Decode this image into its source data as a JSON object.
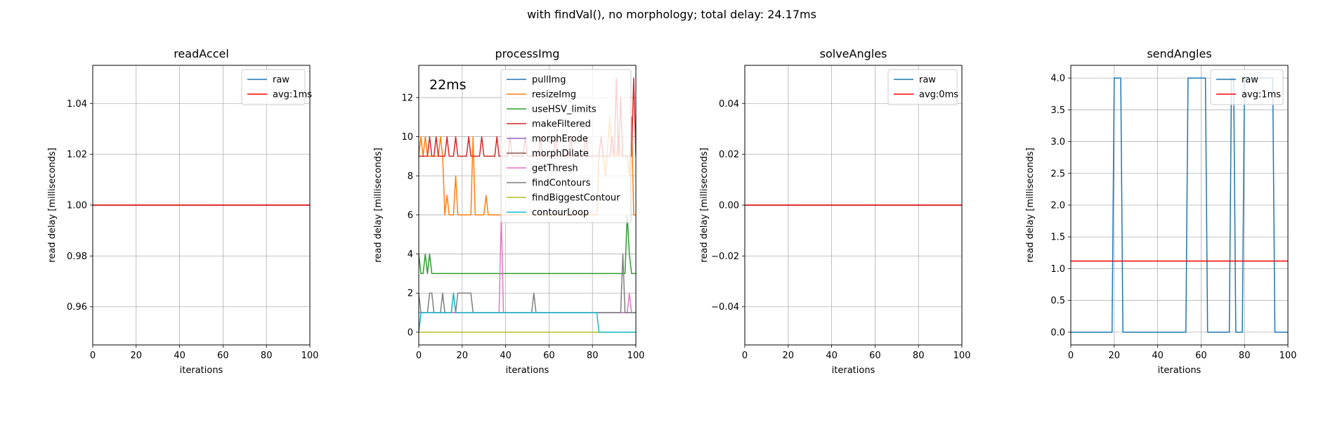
{
  "figure": {
    "suptitle": "with findVal(), no morphology; total delay: 24.17ms"
  },
  "colors": {
    "tab_blue": "#1f77b4",
    "tab_orange": "#ff7f0e",
    "tab_green": "#2ca02c",
    "tab_red": "#d62728",
    "tab_purple": "#9467bd",
    "tab_brown": "#8c564b",
    "tab_pink": "#e377c2",
    "tab_gray": "#7f7f7f",
    "tab_olive": "#bcbd22",
    "tab_cyan": "#17becf",
    "avg_red": "#ff0000",
    "grid": "#b0b0b0"
  },
  "chart_data": [
    {
      "type": "line",
      "title": "readAccel",
      "xlabel": "iterations",
      "ylabel": "read delay [milliseconds]",
      "xlim": [
        0,
        100
      ],
      "ylim": [
        0.945,
        1.055
      ],
      "xticks": [
        0,
        20,
        40,
        60,
        80,
        100
      ],
      "yticks": [
        0.96,
        0.98,
        1.0,
        1.02,
        1.04
      ],
      "ytick_labels": [
        "0.96",
        "0.98",
        "1.00",
        "1.02",
        "1.04"
      ],
      "grid": true,
      "legend": "upper right",
      "series": [
        {
          "name": "raw",
          "color": "#1f77b4",
          "segments": [
            [
              [
                0,
                1
              ],
              [
                100,
                1
              ]
            ]
          ]
        },
        {
          "name": "avg:1ms",
          "color": "#ff0000",
          "segments": [
            [
              [
                0,
                1
              ],
              [
                100,
                1
              ]
            ]
          ]
        }
      ]
    },
    {
      "type": "line",
      "title": "processImg",
      "xlabel": "iterations",
      "ylabel": "read delay [milliseconds]",
      "xlim": [
        0,
        100
      ],
      "ylim": [
        -0.65,
        13.65
      ],
      "xticks": [
        0,
        20,
        40,
        60,
        80,
        100
      ],
      "yticks": [
        0,
        2,
        4,
        6,
        8,
        10,
        12
      ],
      "ytick_labels": [
        "0",
        "2",
        "4",
        "6",
        "8",
        "10",
        "12"
      ],
      "grid": true,
      "legend": "upper right",
      "annotation": "22ms",
      "series": [
        {
          "name": "pullImg",
          "color": "#1f77b4",
          "segments": [
            [
              [
                0,
                0
              ],
              [
                1,
                1
              ],
              [
                100,
                1
              ]
            ]
          ]
        },
        {
          "name": "resizeImg",
          "color": "#ff7f0e",
          "segments": [
            [
              [
                0,
                9
              ],
              [
                1,
                10
              ],
              [
                2,
                9
              ],
              [
                3,
                10
              ],
              [
                4,
                9
              ],
              [
                9,
                9
              ],
              [
                10,
                10
              ],
              [
                11,
                9
              ],
              [
                12,
                6
              ],
              [
                13,
                7
              ],
              [
                14,
                6
              ],
              [
                16,
                6
              ],
              [
                17,
                8
              ],
              [
                18,
                6
              ],
              [
                24,
                6
              ],
              [
                25,
                10
              ],
              [
                26,
                6
              ],
              [
                30,
                6
              ],
              [
                31,
                7
              ],
              [
                32,
                6
              ],
              [
                82,
                6
              ],
              [
                83,
                9
              ],
              [
                85,
                9
              ],
              [
                86,
                8
              ],
              [
                88,
                11
              ],
              [
                89,
                9
              ],
              [
                91,
                9
              ],
              [
                92,
                10
              ],
              [
                93,
                9
              ],
              [
                96,
                9
              ],
              [
                97,
                8
              ],
              [
                98,
                11
              ],
              [
                99,
                6
              ],
              [
                100,
                6
              ]
            ]
          ]
        },
        {
          "name": "useHSV_limits",
          "color": "#2ca02c",
          "segments": [
            [
              [
                0,
                4
              ],
              [
                1,
                3
              ],
              [
                2,
                3
              ],
              [
                3,
                4
              ],
              [
                4,
                3
              ],
              [
                5,
                4
              ],
              [
                6,
                3
              ],
              [
                95,
                3
              ],
              [
                96,
                6
              ],
              [
                97,
                4
              ],
              [
                98,
                3
              ],
              [
                100,
                3
              ]
            ]
          ]
        },
        {
          "name": "makeFiltered",
          "color": "#d62728",
          "segments": [
            [
              [
                0,
                9
              ],
              [
                4,
                9
              ],
              [
                5,
                10
              ],
              [
                6,
                9
              ],
              [
                7,
                9
              ],
              [
                8,
                10
              ],
              [
                9,
                9
              ],
              [
                12,
                9
              ],
              [
                13,
                10
              ],
              [
                14,
                9
              ],
              [
                16,
                9
              ],
              [
                17,
                10
              ],
              [
                18,
                9
              ],
              [
                22,
                9
              ],
              [
                23,
                10
              ],
              [
                24,
                9
              ],
              [
                28,
                9
              ],
              [
                29,
                10
              ],
              [
                30,
                9
              ],
              [
                35,
                9
              ],
              [
                36,
                10
              ],
              [
                37,
                9
              ],
              [
                41,
                9
              ],
              [
                42,
                10
              ],
              [
                43,
                9
              ],
              [
                48,
                9
              ],
              [
                49,
                10
              ],
              [
                50,
                9
              ],
              [
                55,
                9
              ],
              [
                56,
                10
              ],
              [
                57,
                9
              ],
              [
                62,
                9
              ],
              [
                63,
                10
              ],
              [
                64,
                9
              ],
              [
                69,
                9
              ],
              [
                70,
                10
              ],
              [
                71,
                9
              ],
              [
                76,
                9
              ],
              [
                77,
                10
              ],
              [
                78,
                9
              ],
              [
                83,
                9
              ],
              [
                84,
                10
              ],
              [
                85,
                9
              ],
              [
                88,
                9
              ],
              [
                89,
                10
              ],
              [
                90,
                9
              ],
              [
                91,
                13
              ],
              [
                92,
                9
              ],
              [
                93,
                12
              ],
              [
                94,
                9
              ],
              [
                98,
                9
              ],
              [
                99,
                13
              ],
              [
                100,
                9
              ]
            ]
          ]
        },
        {
          "name": "morphErode",
          "color": "#9467bd",
          "segments": []
        },
        {
          "name": "morphDilate",
          "color": "#8c564b",
          "segments": []
        },
        {
          "name": "getThresh",
          "color": "#e377c2",
          "segments": [
            [
              [
                0,
                1
              ],
              [
                37,
                1
              ],
              [
                38,
                6
              ],
              [
                39,
                1
              ],
              [
                96,
                1
              ],
              [
                97,
                2
              ],
              [
                98,
                1
              ],
              [
                100,
                1
              ]
            ]
          ]
        },
        {
          "name": "findContours",
          "color": "#7f7f7f",
          "segments": [
            [
              [
                0,
                2
              ],
              [
                1,
                1
              ],
              [
                4,
                1
              ],
              [
                5,
                2
              ],
              [
                6,
                2
              ],
              [
                7,
                1
              ],
              [
                10,
                1
              ],
              [
                11,
                2
              ],
              [
                12,
                1
              ],
              [
                15,
                1
              ],
              [
                16,
                2
              ],
              [
                17,
                1
              ],
              [
                18,
                2
              ],
              [
                24,
                2
              ],
              [
                25,
                1
              ],
              [
                52,
                1
              ],
              [
                53,
                2
              ],
              [
                54,
                1
              ],
              [
                93,
                1
              ],
              [
                94,
                4
              ],
              [
                95,
                1
              ],
              [
                100,
                1
              ]
            ]
          ]
        },
        {
          "name": "findBiggestContour",
          "color": "#bcbd22",
          "segments": [
            [
              [
                0,
                0
              ],
              [
                100,
                0
              ]
            ]
          ]
        },
        {
          "name": "contourLoop",
          "color": "#17becf",
          "segments": [
            [
              [
                0,
                0
              ],
              [
                1,
                1
              ],
              [
                15,
                1
              ],
              [
                16,
                2
              ],
              [
                17,
                1
              ],
              [
                82,
                1
              ],
              [
                83,
                0
              ],
              [
                100,
                0
              ]
            ]
          ]
        }
      ]
    },
    {
      "type": "line",
      "title": "solveAngles",
      "xlabel": "iterations",
      "ylabel": "read delay [milliseconds]",
      "xlim": [
        0,
        100
      ],
      "ylim": [
        -0.055,
        0.055
      ],
      "xticks": [
        0,
        20,
        40,
        60,
        80,
        100
      ],
      "yticks": [
        -0.04,
        -0.02,
        0.0,
        0.02,
        0.04
      ],
      "ytick_labels": [
        "−0.04",
        "−0.02",
        "0.00",
        "0.02",
        "0.04"
      ],
      "grid": true,
      "legend": "upper right",
      "series": [
        {
          "name": "raw",
          "color": "#1f77b4",
          "segments": [
            [
              [
                0,
                0
              ],
              [
                100,
                0
              ]
            ]
          ]
        },
        {
          "name": "avg:0ms",
          "color": "#ff0000",
          "segments": [
            [
              [
                0,
                0
              ],
              [
                100,
                0
              ]
            ]
          ]
        }
      ]
    },
    {
      "type": "line",
      "title": "sendAngles",
      "xlabel": "iterations",
      "ylabel": "read delay [milliseconds]",
      "xlim": [
        0,
        100
      ],
      "ylim": [
        -0.2,
        4.2
      ],
      "xticks": [
        0,
        20,
        40,
        60,
        80,
        100
      ],
      "yticks": [
        0,
        0.5,
        1.0,
        1.5,
        2.0,
        2.5,
        3.0,
        3.5,
        4.0
      ],
      "ytick_labels": [
        "0.0",
        "0.5",
        "1.0",
        "1.5",
        "2.0",
        "2.5",
        "3.0",
        "3.5",
        "4.0"
      ],
      "grid": true,
      "legend": "upper right",
      "series": [
        {
          "name": "raw",
          "color": "#1f77b4",
          "segments": [
            [
              [
                0,
                0
              ],
              [
                19,
                0
              ],
              [
                20,
                4
              ],
              [
                23,
                4
              ],
              [
                24,
                0
              ],
              [
                53,
                0
              ],
              [
                54,
                4
              ],
              [
                62,
                4
              ],
              [
                63,
                0
              ],
              [
                73,
                0
              ],
              [
                74,
                4
              ],
              [
                75,
                4
              ],
              [
                76,
                0
              ],
              [
                79,
                0
              ],
              [
                80,
                4
              ],
              [
                93,
                4
              ],
              [
                94,
                0
              ],
              [
                100,
                0
              ]
            ]
          ]
        },
        {
          "name": "avg:1ms",
          "color": "#ff0000",
          "segments": [
            [
              [
                0,
                1.12
              ],
              [
                100,
                1.12
              ]
            ]
          ]
        }
      ]
    }
  ]
}
